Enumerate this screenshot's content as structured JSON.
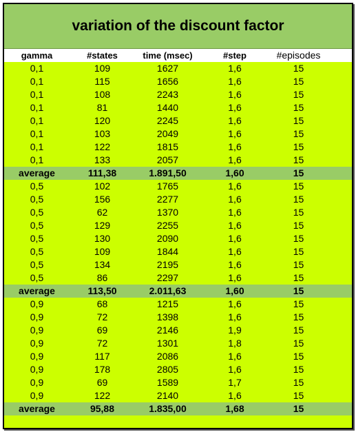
{
  "title": "variation of the discount factor",
  "columns": [
    "gamma",
    "#states",
    "time (msec)",
    "#step",
    "#episodes"
  ],
  "rows": [
    {
      "type": "data",
      "cells": [
        "0,1",
        "109",
        "1627",
        "1,6",
        "15"
      ]
    },
    {
      "type": "data",
      "cells": [
        "0,1",
        "115",
        "1656",
        "1,6",
        "15"
      ]
    },
    {
      "type": "data",
      "cells": [
        "0,1",
        "108",
        "2243",
        "1,6",
        "15"
      ]
    },
    {
      "type": "data",
      "cells": [
        "0,1",
        "81",
        "1440",
        "1,6",
        "15"
      ]
    },
    {
      "type": "data",
      "cells": [
        "0,1",
        "120",
        "2245",
        "1,6",
        "15"
      ]
    },
    {
      "type": "data",
      "cells": [
        "0,1",
        "103",
        "2049",
        "1,6",
        "15"
      ]
    },
    {
      "type": "data",
      "cells": [
        "0,1",
        "122",
        "1815",
        "1,6",
        "15"
      ]
    },
    {
      "type": "data",
      "cells": [
        "0,1",
        "133",
        "2057",
        "1,6",
        "15"
      ]
    },
    {
      "type": "average",
      "cells": [
        "average",
        "111,38",
        "1.891,50",
        "1,60",
        "15"
      ]
    },
    {
      "type": "data",
      "cells": [
        "0,5",
        "102",
        "1765",
        "1,6",
        "15"
      ]
    },
    {
      "type": "data",
      "cells": [
        "0,5",
        "156",
        "2277",
        "1,6",
        "15"
      ]
    },
    {
      "type": "data",
      "cells": [
        "0,5",
        "62",
        "1370",
        "1,6",
        "15"
      ]
    },
    {
      "type": "data",
      "cells": [
        "0,5",
        "129",
        "2255",
        "1,6",
        "15"
      ]
    },
    {
      "type": "data",
      "cells": [
        "0,5",
        "130",
        "2090",
        "1,6",
        "15"
      ]
    },
    {
      "type": "data",
      "cells": [
        "0,5",
        "109",
        "1844",
        "1,6",
        "15"
      ]
    },
    {
      "type": "data",
      "cells": [
        "0,5",
        "134",
        "2195",
        "1,6",
        "15"
      ]
    },
    {
      "type": "data",
      "cells": [
        "0,5",
        "86",
        "2297",
        "1,6",
        "15"
      ]
    },
    {
      "type": "average",
      "cells": [
        "average",
        "113,50",
        "2.011,63",
        "1,60",
        "15"
      ]
    },
    {
      "type": "data",
      "cells": [
        "0,9",
        "68",
        "1215",
        "1,6",
        "15"
      ]
    },
    {
      "type": "data",
      "cells": [
        "0,9",
        "72",
        "1398",
        "1,6",
        "15"
      ]
    },
    {
      "type": "data",
      "cells": [
        "0,9",
        "69",
        "2146",
        "1,9",
        "15"
      ]
    },
    {
      "type": "data",
      "cells": [
        "0,9",
        "72",
        "1301",
        "1,8",
        "15"
      ]
    },
    {
      "type": "data",
      "cells": [
        "0,9",
        "117",
        "2086",
        "1,6",
        "15"
      ]
    },
    {
      "type": "data",
      "cells": [
        "0,9",
        "178",
        "2805",
        "1,6",
        "15"
      ]
    },
    {
      "type": "data",
      "cells": [
        "0,9",
        "69",
        "1589",
        "1,7",
        "15"
      ]
    },
    {
      "type": "data",
      "cells": [
        "0,9",
        "122",
        "2140",
        "1,6",
        "15"
      ]
    },
    {
      "type": "average",
      "cells": [
        "average",
        "95,88",
        "1.835,00",
        "1,68",
        "15"
      ]
    }
  ],
  "colors": {
    "data_row_bg": "#ccff00",
    "average_row_bg": "#99cc66",
    "title_bg": "#99cc66",
    "header_bg": "#ffffff"
  }
}
